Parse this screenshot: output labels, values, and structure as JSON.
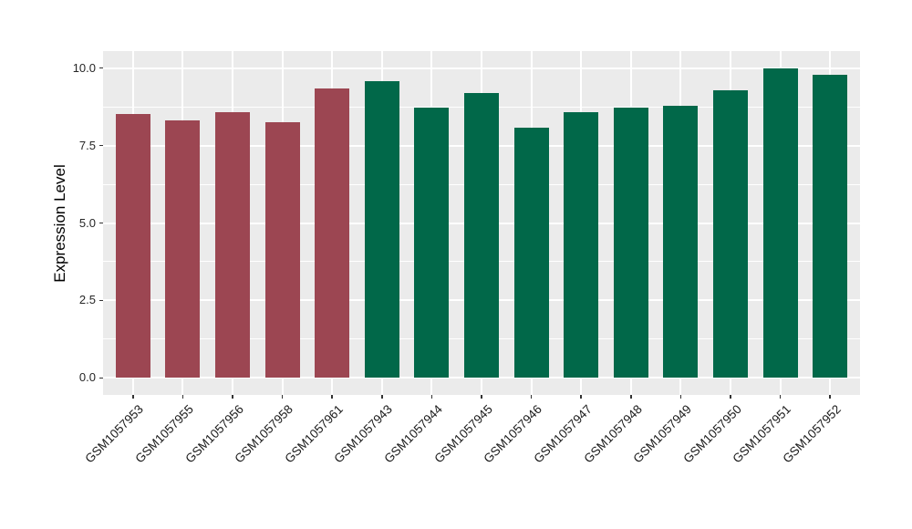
{
  "figure": {
    "background_color": "#FFFFFF",
    "panel_background_color": "#EBEBEB",
    "gridline_color": "#FFFFFF",
    "tick_color": "#333333",
    "axis_text_color": "#262626"
  },
  "chart_data": {
    "type": "bar",
    "title": "",
    "xlabel": "",
    "ylabel": "Expression Level",
    "categories": [
      "GSM1057953",
      "GSM1057955",
      "GSM1057956",
      "GSM1057958",
      "GSM1057961",
      "GSM1057943",
      "GSM1057944",
      "GSM1057945",
      "GSM1057946",
      "GSM1057947",
      "GSM1057948",
      "GSM1057949",
      "GSM1057950",
      "GSM1057951",
      "GSM1057952"
    ],
    "values": [
      8.53,
      8.3,
      8.57,
      8.24,
      9.33,
      9.58,
      8.71,
      9.2,
      8.08,
      8.58,
      8.72,
      8.79,
      9.27,
      10.0,
      9.77
    ],
    "colors": [
      "#9C4652",
      "#9C4652",
      "#9C4652",
      "#9C4652",
      "#9C4652",
      "#016849",
      "#016849",
      "#016849",
      "#016849",
      "#016849",
      "#016849",
      "#016849",
      "#016849",
      "#016849",
      "#016849"
    ],
    "group_colors": {
      "group1": "#9C4652",
      "group2": "#016849"
    },
    "ylim": [
      0,
      10.0
    ],
    "yticks": {
      "values": [
        0.0,
        2.5,
        5.0,
        7.5,
        10.0
      ],
      "labels": [
        "0.0",
        "2.5",
        "5.0",
        "7.5",
        "10.0"
      ]
    },
    "minor_yticks": [
      1.25,
      3.75,
      6.25,
      8.75
    ],
    "xtick_label_rotation_deg": 45,
    "grid": "horizontal major+minor, vertical major per category",
    "legend_position": "none"
  }
}
